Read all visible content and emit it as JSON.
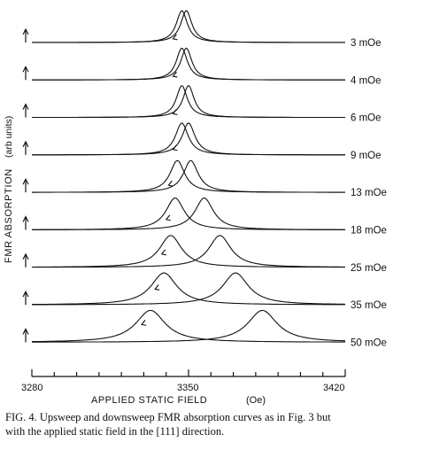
{
  "chart_data": {
    "type": "line",
    "title": "",
    "xlabel": "APPLIED STATIC FIELD",
    "xlabel_unit": "(Oe)",
    "ylabel": "FMR ABSORPTION",
    "ylabel_unit": "(arb units)",
    "xlim": [
      3280,
      3420
    ],
    "xticks": [
      "3280",
      "3350",
      "3420"
    ],
    "grid": false,
    "legend": "curve labels at right end of each trace",
    "series": [
      {
        "name": "3 mOe",
        "downsweep_peak": 3347,
        "upsweep_peak": 3349,
        "width": 3
      },
      {
        "name": "4 mOe",
        "downsweep_peak": 3347,
        "upsweep_peak": 3349,
        "width": 3
      },
      {
        "name": "6 mOe",
        "downsweep_peak": 3347,
        "upsweep_peak": 3350,
        "width": 3
      },
      {
        "name": "9 mOe",
        "downsweep_peak": 3347,
        "upsweep_peak": 3350,
        "width": 3.5
      },
      {
        "name": "13 mOe",
        "downsweep_peak": 3345,
        "upsweep_peak": 3351,
        "width": 4
      },
      {
        "name": "18 mOe",
        "downsweep_peak": 3344,
        "upsweep_peak": 3357,
        "width": 5
      },
      {
        "name": "25 mOe",
        "downsweep_peak": 3342,
        "upsweep_peak": 3364,
        "width": 6
      },
      {
        "name": "35 mOe",
        "downsweep_peak": 3339,
        "upsweep_peak": 3371,
        "width": 7
      },
      {
        "name": "50 mOe",
        "downsweep_peak": 3333,
        "upsweep_peak": 3383,
        "width": 8
      }
    ]
  },
  "caption": {
    "line1": "FIG. 4. Upsweep and downsweep FMR absorption curves as in Fig. 3 but",
    "line2": "with the applied static field in the [111] direction."
  }
}
